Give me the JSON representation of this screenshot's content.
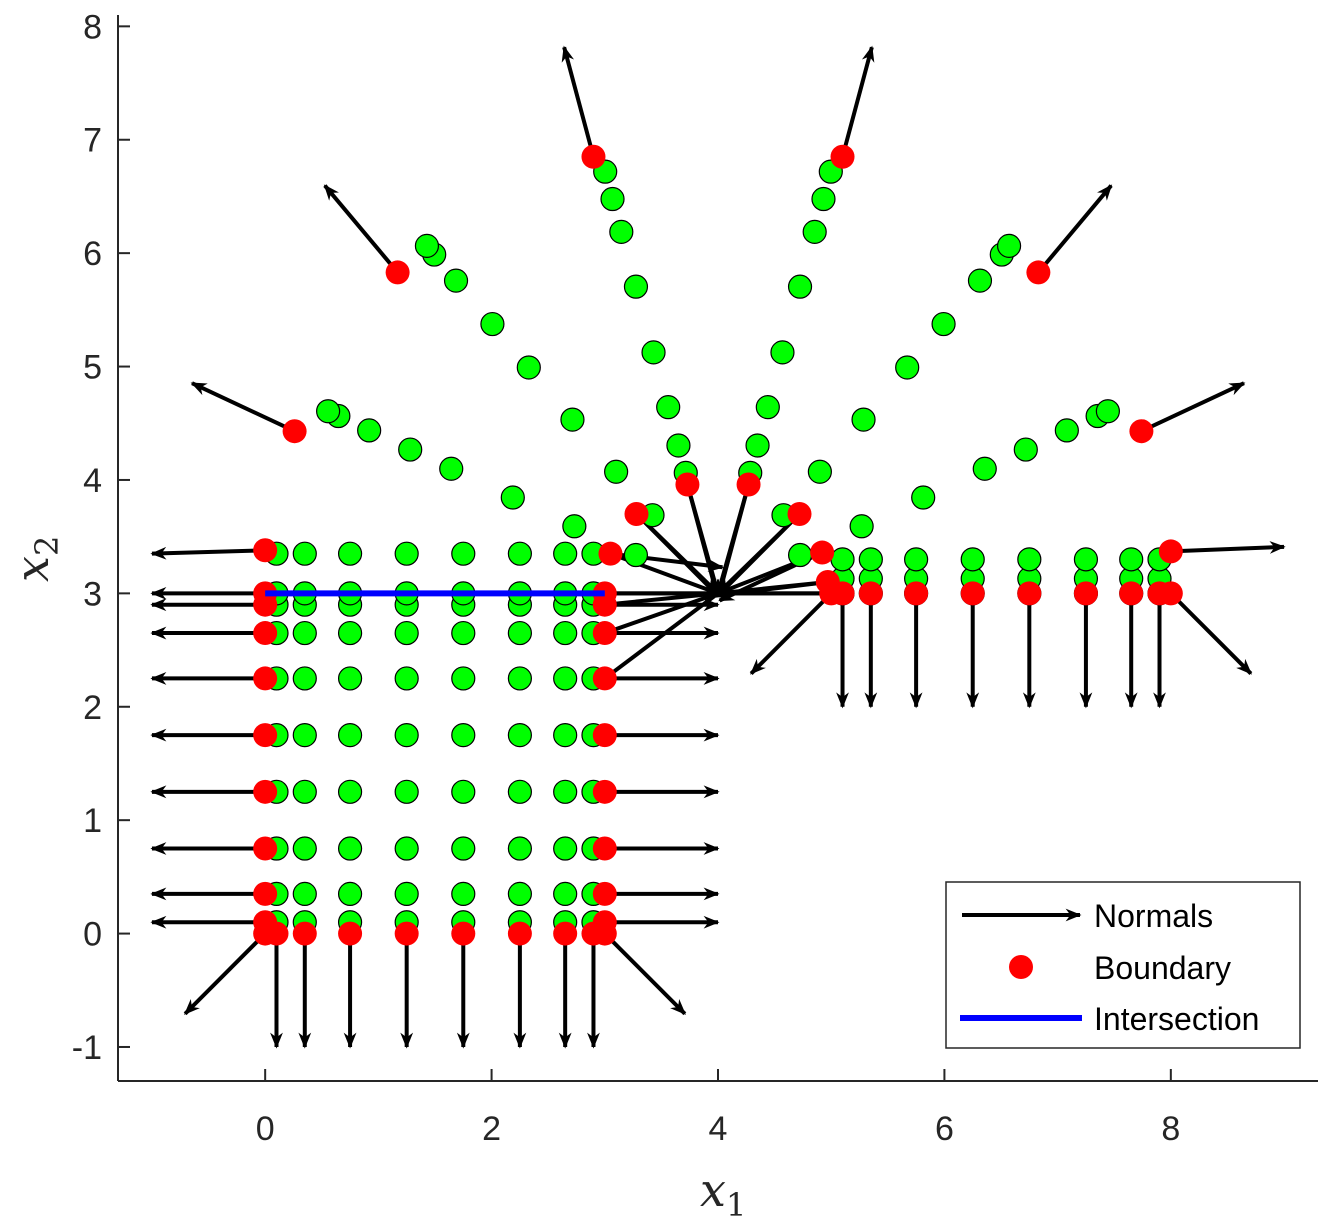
{
  "chart_data": {
    "type": "scatter",
    "title": "",
    "xlabel": "x1",
    "ylabel": "x2",
    "xlabel_parts": {
      "base": "x",
      "sub": "1"
    },
    "ylabel_parts": {
      "base": "x",
      "sub": "2"
    },
    "xlim": [
      -1.3,
      9.3
    ],
    "ylim": [
      -1.3,
      8.1
    ],
    "xticks": [
      0,
      2,
      4,
      6,
      8
    ],
    "xtick_labels": [
      "0",
      "2",
      "4",
      "6",
      "8"
    ],
    "yticks": [
      -1,
      0,
      1,
      2,
      3,
      4,
      5,
      6,
      7,
      8
    ],
    "ytick_labels": [
      "-1",
      "0",
      "1",
      "2",
      "3",
      "4",
      "5",
      "6",
      "7",
      "8"
    ],
    "grid": false,
    "legend_position": "bottom-right",
    "legend": [
      {
        "label": "Normals",
        "kind": "arrow",
        "color": "#000000"
      },
      {
        "label": "Boundary",
        "kind": "marker",
        "color": "#ff0000"
      },
      {
        "label": "Intersection",
        "kind": "line",
        "color": "#0000ff"
      }
    ],
    "colors": {
      "interior": "#00ff00",
      "boundary": "#ff0000",
      "normals": "#000000",
      "intersection": "#0000ff"
    },
    "interior_points": {
      "rect_x": [
        0.1,
        0.35,
        0.75,
        1.25,
        1.75,
        2.25,
        2.65,
        2.9
      ],
      "rect_y": [
        0.1,
        0.35,
        0.75,
        1.25,
        1.75,
        2.25,
        2.65,
        2.9,
        3.0,
        3.35
      ],
      "half_y": [
        3.0,
        3.13,
        3.3
      ],
      "fan_center": [
        4,
        3
      ],
      "fan_rays": [
        {
          "angle_deg": 155,
          "radii": [
            0.8,
            1.4,
            2.0,
            2.6,
            3.0,
            3.4,
            3.7,
            3.8
          ]
        },
        {
          "angle_deg": 130,
          "radii": [
            0.9,
            1.4,
            2.0,
            2.6,
            3.1,
            3.6,
            3.9,
            4.0
          ]
        },
        {
          "angle_deg": 105,
          "radii": [
            1.1,
            1.35,
            1.7,
            2.2,
            2.8,
            3.3,
            3.6,
            3.85
          ]
        },
        {
          "angle_deg": 75,
          "radii": [
            1.1,
            1.35,
            1.7,
            2.2,
            2.8,
            3.3,
            3.6,
            3.85
          ]
        },
        {
          "angle_deg": 50,
          "radii": [
            0.9,
            1.4,
            2.0,
            2.6,
            3.1,
            3.6,
            3.9,
            4.0
          ]
        },
        {
          "angle_deg": 25,
          "radii": [
            0.8,
            1.4,
            2.0,
            2.6,
            3.0,
            3.4,
            3.7,
            3.8
          ]
        }
      ]
    },
    "boundary_points": [
      {
        "x": 0,
        "y": 0,
        "nx": -0.707,
        "ny": -0.707
      },
      {
        "x": 0,
        "y": 0.1,
        "nx": -1,
        "ny": 0
      },
      {
        "x": 0,
        "y": 0.35,
        "nx": -1,
        "ny": 0
      },
      {
        "x": 0,
        "y": 0.75,
        "nx": -1,
        "ny": 0
      },
      {
        "x": 0,
        "y": 1.25,
        "nx": -1,
        "ny": 0
      },
      {
        "x": 0,
        "y": 1.75,
        "nx": -1,
        "ny": 0
      },
      {
        "x": 0,
        "y": 2.25,
        "nx": -1,
        "ny": 0
      },
      {
        "x": 0,
        "y": 2.65,
        "nx": -1,
        "ny": 0
      },
      {
        "x": 0,
        "y": 2.9,
        "nx": -1,
        "ny": 0
      },
      {
        "x": 0,
        "y": 3.0,
        "nx": -1,
        "ny": 0
      },
      {
        "x": 0,
        "y": 3.38,
        "nx": -1,
        "ny": -0.03
      },
      {
        "x": 3,
        "y": 0,
        "nx": 0.707,
        "ny": -0.707
      },
      {
        "x": 3,
        "y": 0.1,
        "nx": 1,
        "ny": 0
      },
      {
        "x": 3,
        "y": 0.35,
        "nx": 1,
        "ny": 0
      },
      {
        "x": 3,
        "y": 0.75,
        "nx": 1,
        "ny": 0
      },
      {
        "x": 3,
        "y": 1.25,
        "nx": 1,
        "ny": 0
      },
      {
        "x": 3,
        "y": 1.75,
        "nx": 1,
        "ny": 0
      },
      {
        "x": 3,
        "y": 2.25,
        "nx": 1,
        "ny": 0
      },
      {
        "x": 3,
        "y": 2.65,
        "nx": 1,
        "ny": 0
      },
      {
        "x": 3,
        "y": 2.9,
        "nx": 1,
        "ny": 0
      },
      {
        "x": 3,
        "y": 3.0,
        "nx": 1,
        "ny": 0
      },
      {
        "x": 3.05,
        "y": 3.35,
        "nx": 0.99,
        "ny": -0.12
      },
      {
        "x": 0.1,
        "y": 0,
        "nx": 0,
        "ny": -1
      },
      {
        "x": 0.35,
        "y": 0,
        "nx": 0,
        "ny": -1
      },
      {
        "x": 0.75,
        "y": 0,
        "nx": 0,
        "ny": -1
      },
      {
        "x": 1.25,
        "y": 0,
        "nx": 0,
        "ny": -1
      },
      {
        "x": 1.75,
        "y": 0,
        "nx": 0,
        "ny": -1
      },
      {
        "x": 2.25,
        "y": 0,
        "nx": 0,
        "ny": -1
      },
      {
        "x": 2.65,
        "y": 0,
        "nx": 0,
        "ny": -1
      },
      {
        "x": 2.9,
        "y": 0,
        "nx": 0,
        "ny": -1
      },
      {
        "x": 5.0,
        "y": 3.0,
        "nx": -0.707,
        "ny": -0.707
      },
      {
        "x": 5.1,
        "y": 3.0,
        "nx": 0,
        "ny": -1
      },
      {
        "x": 5.35,
        "y": 3.0,
        "nx": 0,
        "ny": -1
      },
      {
        "x": 5.75,
        "y": 3.0,
        "nx": 0,
        "ny": -1
      },
      {
        "x": 6.25,
        "y": 3.0,
        "nx": 0,
        "ny": -1
      },
      {
        "x": 6.75,
        "y": 3.0,
        "nx": 0,
        "ny": -1
      },
      {
        "x": 7.25,
        "y": 3.0,
        "nx": 0,
        "ny": -1
      },
      {
        "x": 7.65,
        "y": 3.0,
        "nx": 0,
        "ny": -1
      },
      {
        "x": 7.9,
        "y": 3.0,
        "nx": 0,
        "ny": -1
      },
      {
        "x": 8.0,
        "y": 3.0,
        "nx": 0.707,
        "ny": -0.707
      },
      {
        "x": 8.0,
        "y": 3.37,
        "nx": 1,
        "ny": 0.04
      },
      {
        "x": 0.26,
        "y": 4.43,
        "nx": -0.906,
        "ny": 0.423
      },
      {
        "x": 1.17,
        "y": 5.83,
        "nx": -0.643,
        "ny": 0.766
      },
      {
        "x": 2.9,
        "y": 6.85,
        "nx": -0.259,
        "ny": 0.966
      },
      {
        "x": 5.1,
        "y": 6.85,
        "nx": 0.259,
        "ny": 0.966
      },
      {
        "x": 6.83,
        "y": 5.83,
        "nx": 0.643,
        "ny": 0.766
      },
      {
        "x": 7.74,
        "y": 4.43,
        "nx": 0.906,
        "ny": 0.423
      },
      {
        "x": 3.28,
        "y": 3.7,
        "nx": 0.707,
        "ny": -0.707
      },
      {
        "x": 3.73,
        "y": 3.96,
        "nx": 0.259,
        "ny": -0.966
      },
      {
        "x": 4.27,
        "y": 3.96,
        "nx": -0.259,
        "ny": -0.966
      },
      {
        "x": 4.72,
        "y": 3.7,
        "nx": -0.707,
        "ny": -0.707
      },
      {
        "x": 4.92,
        "y": 3.36,
        "nx": -0.906,
        "ny": -0.423
      },
      {
        "x": 4.97,
        "y": 3.1,
        "nx": -0.99,
        "ny": -0.12
      }
    ],
    "normal_arrow_length": 1.0,
    "intersection_segment": {
      "x": [
        0,
        3
      ],
      "y": [
        3,
        3
      ]
    }
  }
}
